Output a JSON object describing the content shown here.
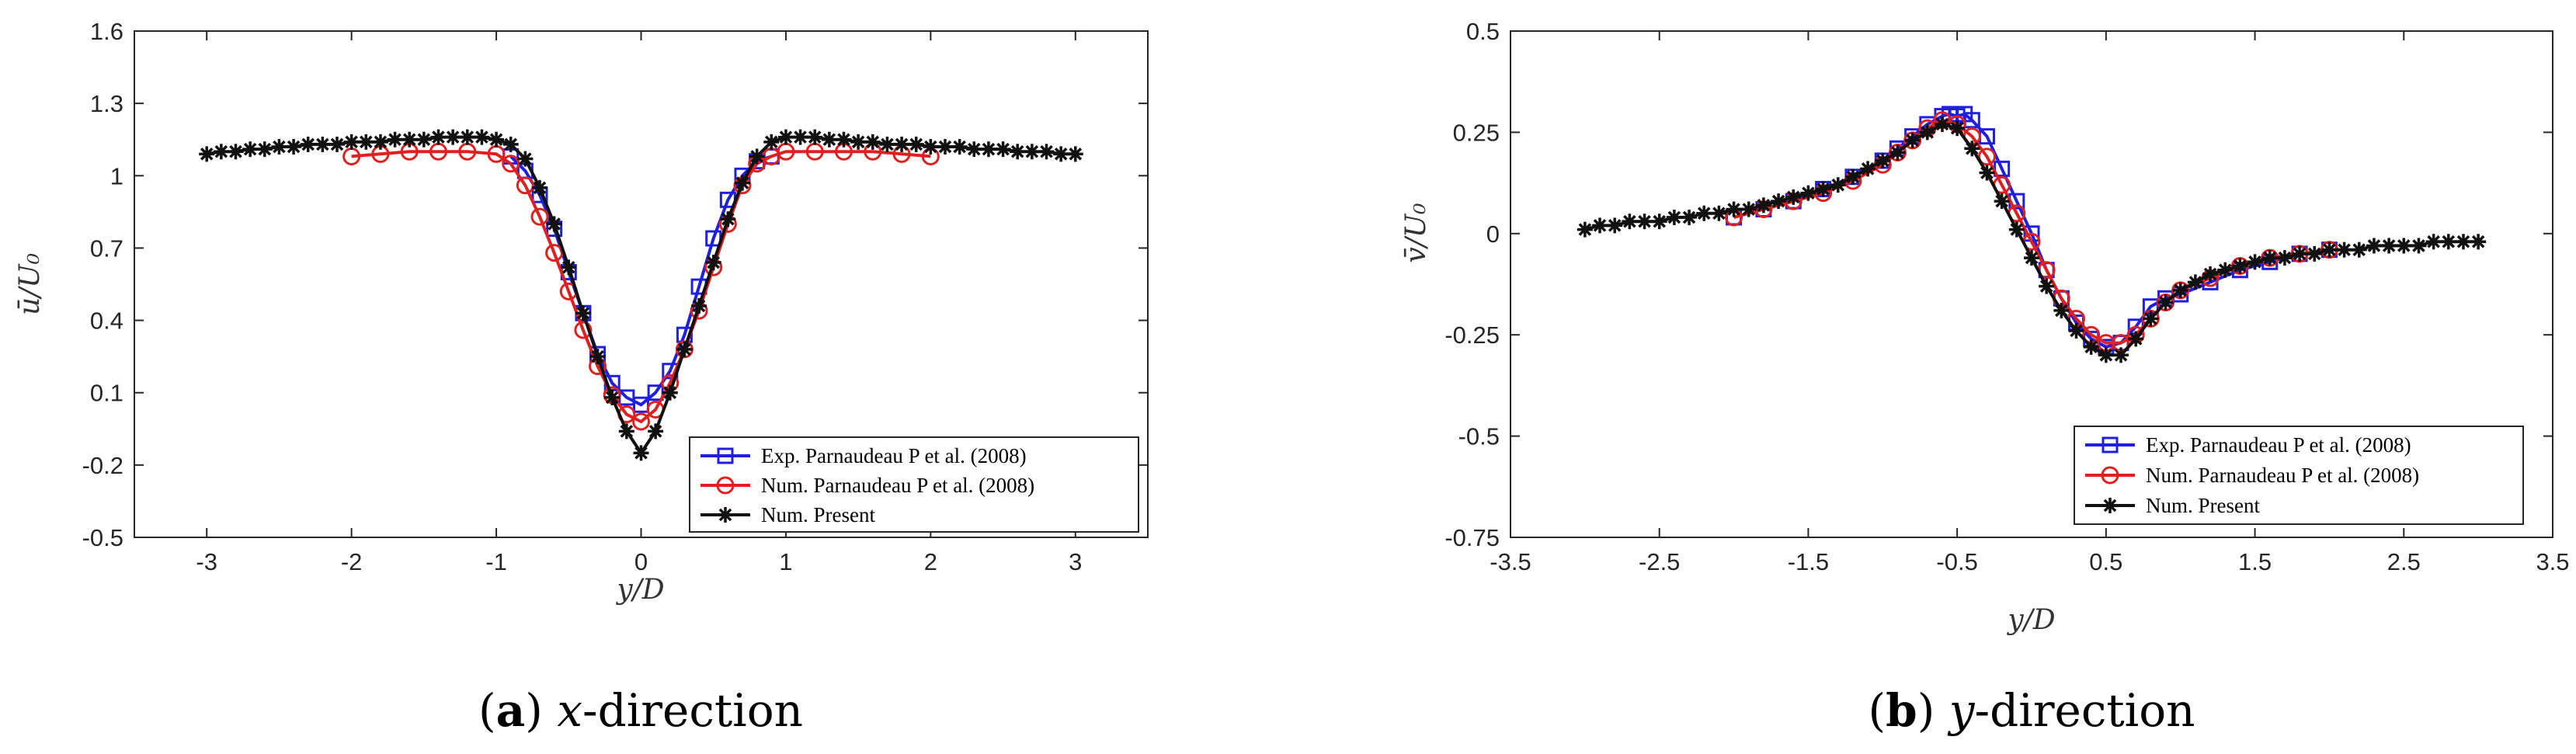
{
  "chart_data": [
    {
      "type": "line",
      "caption_letter": "a",
      "caption_var": "x",
      "caption_rest": "-direction",
      "xlabel": "y/D",
      "ylabel": "ū/U₀",
      "xlim": [
        -3.5,
        3.5
      ],
      "ylim": [
        -0.5,
        1.6
      ],
      "xticks": [
        "-3",
        "-2",
        "-1",
        "0",
        "1",
        "2",
        "3"
      ],
      "yticks": [
        "-0.5",
        "-0.2",
        "0.1",
        "0.4",
        "0.7",
        "1",
        "1.3",
        "1.6"
      ],
      "grid": false,
      "legend_position": "bottom-right",
      "series": [
        {
          "name": "Exp. Parnaudeau P et al. (2008)",
          "color": "#1f1fe0",
          "marker": "square",
          "x": [
            -0.9,
            -0.8,
            -0.7,
            -0.6,
            -0.5,
            -0.4,
            -0.3,
            -0.2,
            -0.1,
            0.0,
            0.1,
            0.2,
            0.3,
            0.4,
            0.5,
            0.6,
            0.7,
            0.8,
            0.9
          ],
          "y": [
            1.08,
            1.02,
            0.92,
            0.78,
            0.6,
            0.43,
            0.26,
            0.14,
            0.08,
            0.05,
            0.1,
            0.19,
            0.34,
            0.54,
            0.74,
            0.9,
            1.0,
            1.06,
            1.08
          ]
        },
        {
          "name": "Num. Parnaudeau P et al. (2008)",
          "color": "#e01f1f",
          "marker": "circle",
          "x": [
            -2.0,
            -1.8,
            -1.6,
            -1.4,
            -1.2,
            -1.0,
            -0.9,
            -0.8,
            -0.7,
            -0.6,
            -0.5,
            -0.4,
            -0.3,
            -0.2,
            -0.1,
            0.0,
            0.1,
            0.2,
            0.3,
            0.4,
            0.5,
            0.6,
            0.7,
            0.8,
            0.9,
            1.0,
            1.2,
            1.4,
            1.6,
            1.8,
            2.0
          ],
          "y": [
            1.08,
            1.09,
            1.1,
            1.1,
            1.1,
            1.09,
            1.05,
            0.96,
            0.83,
            0.68,
            0.52,
            0.36,
            0.21,
            0.09,
            0.01,
            -0.02,
            0.03,
            0.14,
            0.28,
            0.44,
            0.62,
            0.8,
            0.96,
            1.05,
            1.08,
            1.1,
            1.1,
            1.1,
            1.1,
            1.09,
            1.08
          ]
        },
        {
          "name": "Num. Present",
          "color": "#111111",
          "marker": "asterisk",
          "x": [
            -3.0,
            -2.9,
            -2.8,
            -2.7,
            -2.6,
            -2.5,
            -2.4,
            -2.3,
            -2.2,
            -2.1,
            -2.0,
            -1.9,
            -1.8,
            -1.7,
            -1.6,
            -1.5,
            -1.4,
            -1.3,
            -1.2,
            -1.1,
            -1.0,
            -0.9,
            -0.8,
            -0.7,
            -0.6,
            -0.5,
            -0.4,
            -0.3,
            -0.2,
            -0.1,
            0.0,
            0.1,
            0.2,
            0.3,
            0.4,
            0.5,
            0.6,
            0.7,
            0.8,
            0.9,
            1.0,
            1.1,
            1.2,
            1.3,
            1.4,
            1.5,
            1.6,
            1.7,
            1.8,
            1.9,
            2.0,
            2.1,
            2.2,
            2.3,
            2.4,
            2.5,
            2.6,
            2.7,
            2.8,
            2.9,
            3.0
          ],
          "y": [
            1.09,
            1.1,
            1.1,
            1.11,
            1.11,
            1.12,
            1.12,
            1.13,
            1.13,
            1.13,
            1.14,
            1.14,
            1.14,
            1.15,
            1.15,
            1.15,
            1.16,
            1.16,
            1.16,
            1.16,
            1.15,
            1.13,
            1.07,
            0.95,
            0.8,
            0.62,
            0.43,
            0.25,
            0.08,
            -0.06,
            -0.15,
            -0.06,
            0.1,
            0.28,
            0.46,
            0.64,
            0.82,
            0.97,
            1.08,
            1.14,
            1.16,
            1.16,
            1.16,
            1.15,
            1.15,
            1.14,
            1.14,
            1.13,
            1.13,
            1.13,
            1.12,
            1.12,
            1.12,
            1.11,
            1.11,
            1.11,
            1.1,
            1.1,
            1.1,
            1.09,
            1.09
          ]
        }
      ]
    },
    {
      "type": "line",
      "caption_letter": "b",
      "caption_var": "y",
      "caption_rest": "-direction",
      "xlabel": "y/D",
      "ylabel": "v̄/U₀",
      "xlim": [
        -3.5,
        3.5
      ],
      "ylim": [
        -0.75,
        0.5
      ],
      "xticks": [
        "-3.5",
        "-2.5",
        "-1.5",
        "-0.5",
        "0.5",
        "1.5",
        "2.5",
        "3.5"
      ],
      "yticks": [
        "-0.75",
        "-0.5",
        "-0.25",
        "0",
        "0.25",
        "0.5"
      ],
      "grid": false,
      "legend_position": "bottom-right",
      "series": [
        {
          "name": "Exp. Parnaudeau P et al. (2008)",
          "color": "#1f1fe0",
          "marker": "square",
          "x": [
            -2.0,
            -1.8,
            -1.6,
            -1.4,
            -1.2,
            -1.0,
            -0.9,
            -0.8,
            -0.7,
            -0.6,
            -0.55,
            -0.5,
            -0.45,
            -0.4,
            -0.3,
            -0.2,
            -0.1,
            0.0,
            0.1,
            0.2,
            0.3,
            0.4,
            0.5,
            0.6,
            0.7,
            0.8,
            0.9,
            1.0,
            1.2,
            1.4,
            1.6,
            1.8,
            2.0
          ],
          "y": [
            0.04,
            0.06,
            0.08,
            0.11,
            0.14,
            0.18,
            0.21,
            0.24,
            0.27,
            0.29,
            0.295,
            0.29,
            0.295,
            0.28,
            0.24,
            0.16,
            0.08,
            0.0,
            -0.09,
            -0.16,
            -0.22,
            -0.26,
            -0.28,
            -0.27,
            -0.23,
            -0.18,
            -0.16,
            -0.15,
            -0.12,
            -0.09,
            -0.07,
            -0.05,
            -0.04
          ]
        },
        {
          "name": "Num. Parnaudeau P et al. (2008)",
          "color": "#e01f1f",
          "marker": "circle",
          "x": [
            -2.0,
            -1.8,
            -1.6,
            -1.4,
            -1.2,
            -1.0,
            -0.9,
            -0.8,
            -0.7,
            -0.6,
            -0.5,
            -0.4,
            -0.3,
            -0.2,
            -0.1,
            0.0,
            0.1,
            0.2,
            0.3,
            0.4,
            0.5,
            0.6,
            0.7,
            0.8,
            0.9,
            1.0,
            1.2,
            1.4,
            1.6,
            1.8,
            2.0
          ],
          "y": [
            0.04,
            0.06,
            0.08,
            0.1,
            0.13,
            0.17,
            0.2,
            0.23,
            0.26,
            0.28,
            0.27,
            0.24,
            0.19,
            0.12,
            0.05,
            -0.02,
            -0.09,
            -0.16,
            -0.21,
            -0.25,
            -0.27,
            -0.27,
            -0.25,
            -0.21,
            -0.17,
            -0.14,
            -0.11,
            -0.08,
            -0.06,
            -0.05,
            -0.04
          ]
        },
        {
          "name": "Num. Present",
          "color": "#111111",
          "marker": "asterisk",
          "x": [
            -3.0,
            -2.9,
            -2.8,
            -2.7,
            -2.6,
            -2.5,
            -2.4,
            -2.3,
            -2.2,
            -2.1,
            -2.0,
            -1.9,
            -1.8,
            -1.7,
            -1.6,
            -1.5,
            -1.4,
            -1.3,
            -1.2,
            -1.1,
            -1.0,
            -0.9,
            -0.8,
            -0.7,
            -0.6,
            -0.5,
            -0.4,
            -0.3,
            -0.2,
            -0.1,
            0.0,
            0.1,
            0.2,
            0.3,
            0.4,
            0.5,
            0.6,
            0.7,
            0.8,
            0.9,
            1.0,
            1.1,
            1.2,
            1.3,
            1.4,
            1.5,
            1.6,
            1.7,
            1.8,
            1.9,
            2.0,
            2.1,
            2.2,
            2.3,
            2.4,
            2.5,
            2.6,
            2.7,
            2.8,
            2.9,
            3.0
          ],
          "y": [
            0.01,
            0.02,
            0.02,
            0.03,
            0.03,
            0.03,
            0.04,
            0.04,
            0.05,
            0.05,
            0.06,
            0.06,
            0.07,
            0.08,
            0.09,
            0.1,
            0.11,
            0.12,
            0.14,
            0.16,
            0.18,
            0.2,
            0.23,
            0.25,
            0.27,
            0.26,
            0.21,
            0.15,
            0.08,
            0.01,
            -0.06,
            -0.13,
            -0.19,
            -0.24,
            -0.28,
            -0.3,
            -0.3,
            -0.26,
            -0.21,
            -0.17,
            -0.14,
            -0.12,
            -0.1,
            -0.09,
            -0.08,
            -0.07,
            -0.06,
            -0.06,
            -0.05,
            -0.05,
            -0.04,
            -0.04,
            -0.04,
            -0.03,
            -0.03,
            -0.03,
            -0.03,
            -0.02,
            -0.02,
            -0.02,
            -0.02
          ]
        }
      ]
    }
  ]
}
